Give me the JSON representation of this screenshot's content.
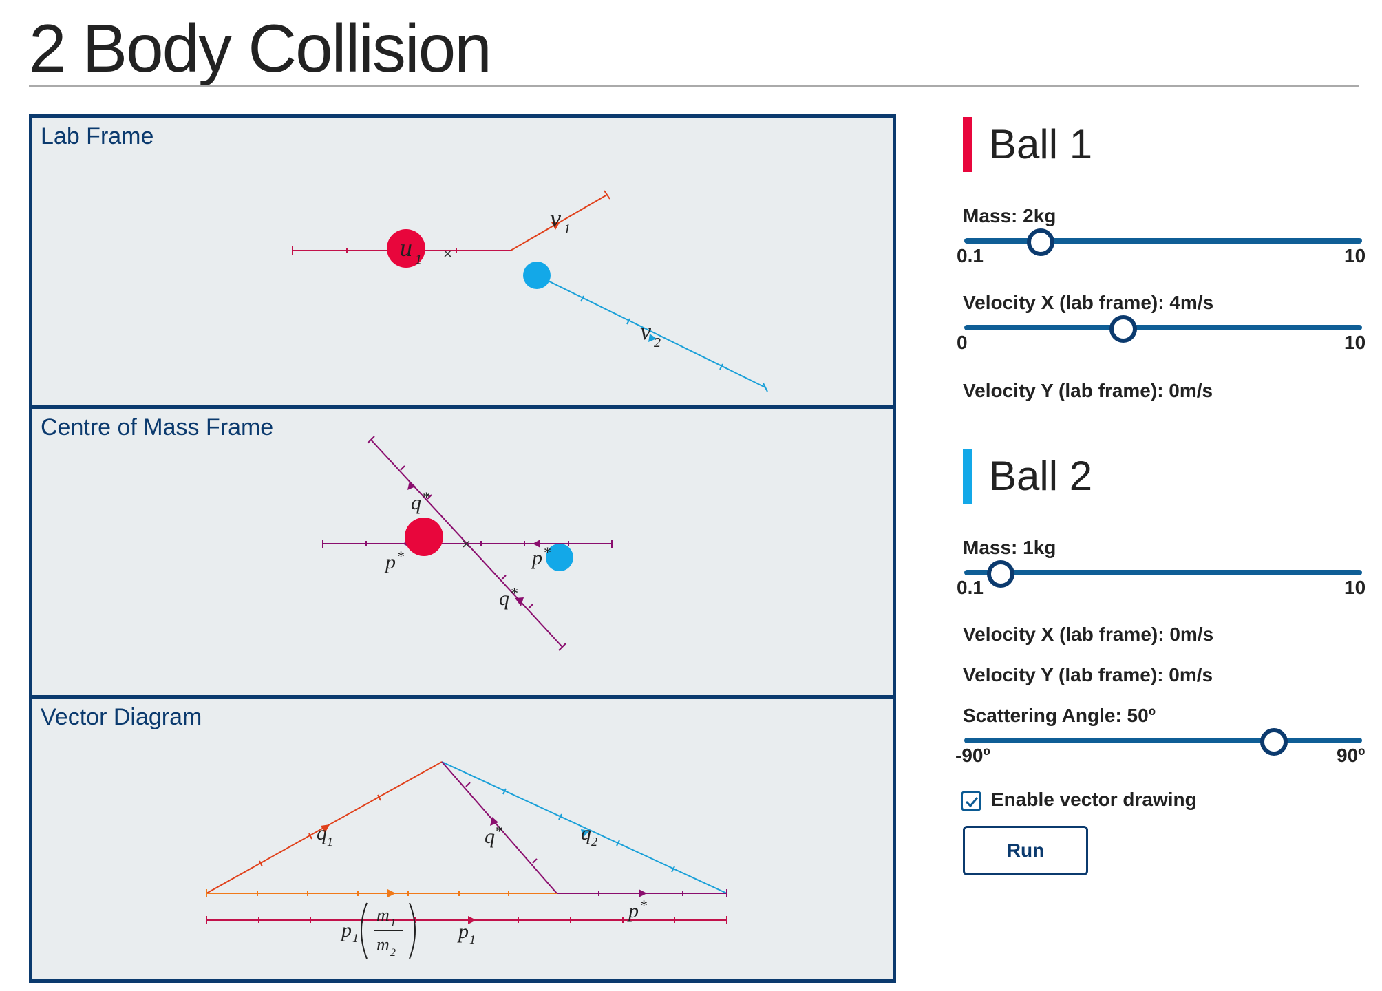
{
  "page": {
    "title": "2 Body Collision"
  },
  "panels": {
    "lab": {
      "label": "Lab Frame"
    },
    "com": {
      "label": "Centre of Mass Frame"
    },
    "vector": {
      "label": "Vector Diagram"
    }
  },
  "ball1": {
    "heading": "Ball 1",
    "color": "#e8063c",
    "mass": {
      "label": "Mass: 2kg",
      "min_label": "0.1",
      "max_label": "10",
      "min": 0.1,
      "max": 10,
      "value": 2
    },
    "velocity_x": {
      "label": "Velocity X (lab frame): 4m/s",
      "min_label": "0",
      "max_label": "10",
      "min": 0,
      "max": 10,
      "value": 4
    },
    "velocity_y": {
      "label": "Velocity Y (lab frame): 0m/s"
    }
  },
  "ball2": {
    "heading": "Ball 2",
    "color": "#13a8e8",
    "mass": {
      "label": "Mass: 1kg",
      "min_label": "0.1",
      "max_label": "10",
      "min": 0.1,
      "max": 10,
      "value": 1
    },
    "velocity_x": {
      "label": "Velocity X (lab frame): 0m/s"
    },
    "velocity_y": {
      "label": "Velocity Y (lab frame): 0m/s"
    },
    "scattering_angle": {
      "label": "Scattering Angle: 50º",
      "min_label": "-90º",
      "max_label": "90º",
      "min": -90,
      "max": 90,
      "value": 50
    }
  },
  "controls": {
    "vector_drawing": {
      "label": "Enable vector drawing",
      "checked": true
    },
    "run_label": "Run"
  },
  "symbols": {
    "u": "u",
    "v": "v",
    "p": "p",
    "q": "q",
    "m": "m",
    "sub1": "1",
    "sub2": "2",
    "star": "*",
    "cross": "×"
  },
  "colors": {
    "accent": "#0b3a6e",
    "slider": "#0f5e96",
    "panel_bg": "#e9edef",
    "orange": "#e0401a",
    "purple": "#8a0e6e",
    "crimson": "#c2124a",
    "cyan": "#1aa0d8",
    "amber": "#f07a1a"
  }
}
